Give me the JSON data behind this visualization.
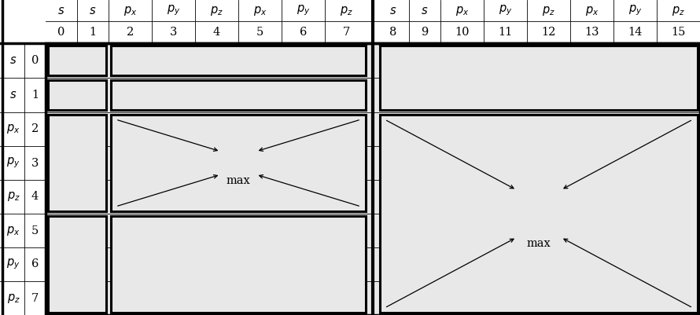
{
  "fig_width": 8.9,
  "fig_height": 4.01,
  "dpi": 100,
  "bg_color": "#ffffff",
  "cell_bg": "#e8e8e8",
  "header_types": [
    "s",
    "s",
    "p_x",
    "p_y",
    "p_z",
    "p_x",
    "p_y",
    "p_z",
    "s",
    "s",
    "p_x",
    "p_y",
    "p_z",
    "p_x",
    "p_y",
    "p_z"
  ],
  "header_nums": [
    "0",
    "1",
    "2",
    "3",
    "4",
    "5",
    "6",
    "7",
    "8",
    "9",
    "10",
    "11",
    "12",
    "13",
    "14",
    "15"
  ],
  "row_types": [
    "s",
    "s",
    "p_x",
    "p_y",
    "p_z",
    "p_x",
    "p_y",
    "p_z"
  ],
  "row_nums": [
    "0",
    "1",
    "2",
    "3",
    "4",
    "5",
    "6",
    "7"
  ],
  "lw_thick": 2.2,
  "lw_thin": 0.6,
  "lw_outer": 2.5,
  "font_size": 10.5
}
